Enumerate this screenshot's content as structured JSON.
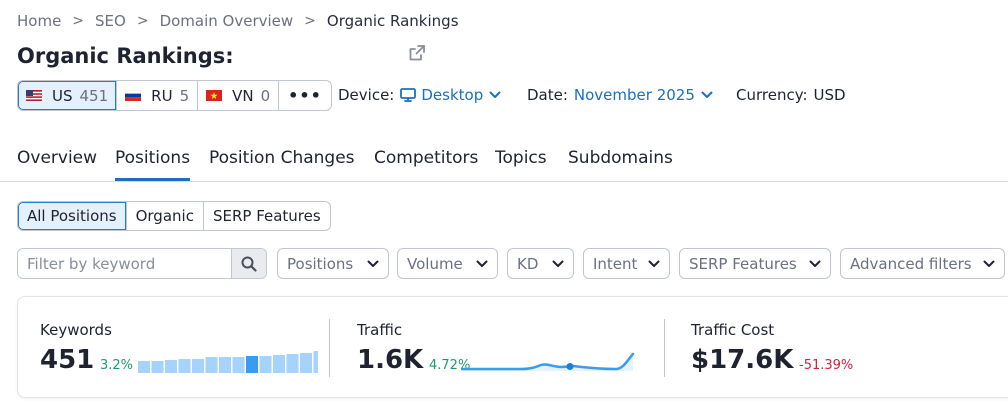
{
  "breadcrumb": {
    "home": "Home",
    "seo": "SEO",
    "domain_overview": "Domain Overview",
    "current": "Organic Rankings",
    "separator": ">"
  },
  "page": {
    "title": "Organic Rankings:"
  },
  "databases": [
    {
      "code": "US",
      "count": "451"
    },
    {
      "code": "RU",
      "count": "5"
    },
    {
      "code": "VN",
      "count": "0"
    }
  ],
  "databases_more": "•••",
  "meta": {
    "device_label": "Device:",
    "device_value": "Desktop",
    "date_label": "Date:",
    "date_value": "November 2025",
    "currency_label": "Currency:",
    "currency_value": "USD"
  },
  "tabs": [
    "Overview",
    "Positions",
    "Position Changes",
    "Competitors",
    "Topics",
    "Subdomains"
  ],
  "active_tab": "Positions",
  "segments": [
    "All Positions",
    "Organic",
    "SERP Features"
  ],
  "filters": {
    "search_placeholder": "Filter by keyword",
    "dropdowns": [
      "Positions",
      "Volume",
      "KD",
      "Intent",
      "SERP Features",
      "Advanced filters"
    ]
  },
  "stats": {
    "keywords": {
      "label": "Keywords",
      "value": "451",
      "delta": "3.2%",
      "trend": [
        0.5,
        0.5,
        0.55,
        0.6,
        0.6,
        0.65,
        0.65,
        0.65,
        0.7,
        0.7,
        0.75,
        0.8,
        0.85,
        0.9
      ]
    },
    "traffic": {
      "label": "Traffic",
      "value": "1.6K",
      "delta": "4.72%"
    },
    "traffic_cost": {
      "label": "Traffic Cost",
      "value": "$17.6K",
      "delta": "-51.39%"
    }
  },
  "colors": {
    "accent": "#1a6fc2",
    "active_bg": "#e4f0fb",
    "positive": "#1b9b6c",
    "negative": "#d3213f",
    "bar": "#a5d3fb",
    "bar_highlight": "#3a9cf0",
    "line": "#3a9cf0"
  },
  "icons": {
    "external": "external-link-icon",
    "search": "search-icon",
    "chevron": "chevron-down-icon",
    "monitor": "monitor-icon"
  }
}
